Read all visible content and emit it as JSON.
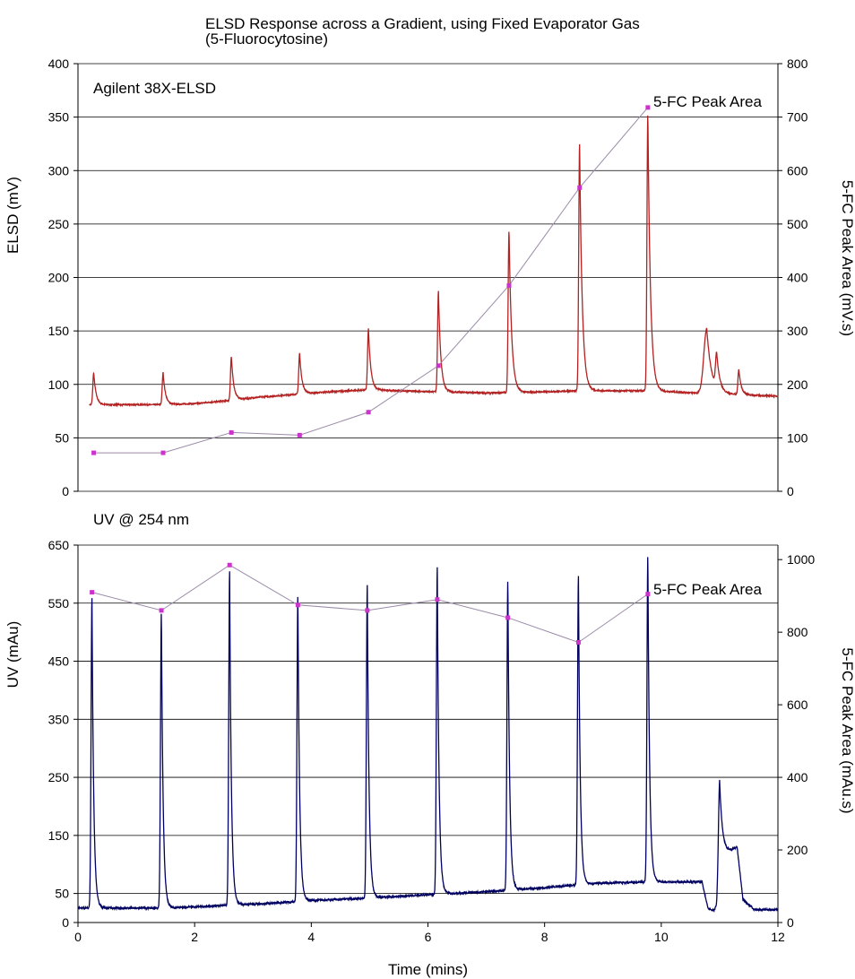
{
  "title_line1": "ELSD Response across a Gradient, using Fixed Evaporator Gas",
  "title_line2": "(5-Fluorocytosine)",
  "chart_data": [
    {
      "type": "line",
      "panel_label": "Agilent 38X-ELSD",
      "ylabel": "ELSD (mV)",
      "y2label": "5-FC Peak Area (mV.s)",
      "xlim": [
        0,
        12
      ],
      "ylim": [
        0,
        400
      ],
      "y2lim": [
        0,
        800
      ],
      "yticks": [
        0,
        50,
        100,
        150,
        200,
        250,
        300,
        350,
        400
      ],
      "y2ticks": [
        0,
        100,
        200,
        300,
        400,
        500,
        600,
        700,
        800
      ],
      "grid": true,
      "colors": {
        "trace": "#b22222",
        "area": "#cc33cc"
      },
      "trace": {
        "baseline": [
          [
            0.2,
            81
          ],
          [
            1.5,
            81
          ],
          [
            2.0,
            82
          ],
          [
            2.6,
            85
          ],
          [
            3.1,
            88
          ],
          [
            3.8,
            91
          ],
          [
            4.3,
            93
          ],
          [
            5.0,
            95
          ],
          [
            5.5,
            94
          ],
          [
            6.2,
            93
          ],
          [
            7.0,
            92
          ],
          [
            8.0,
            93
          ],
          [
            8.6,
            94
          ],
          [
            9.8,
            94
          ],
          [
            10.6,
            92
          ],
          [
            12.0,
            89
          ]
        ],
        "peaks": [
          {
            "t": 0.27,
            "h": 111,
            "w": 0.015,
            "tail": 0.04
          },
          {
            "t": 1.46,
            "h": 111,
            "w": 0.015,
            "tail": 0.04
          },
          {
            "t": 2.63,
            "h": 126,
            "w": 0.015,
            "tail": 0.04
          },
          {
            "t": 3.8,
            "h": 129,
            "w": 0.015,
            "tail": 0.04
          },
          {
            "t": 4.98,
            "h": 152,
            "w": 0.015,
            "tail": 0.04
          },
          {
            "t": 6.18,
            "h": 187,
            "w": 0.015,
            "tail": 0.04
          },
          {
            "t": 7.39,
            "h": 244,
            "w": 0.015,
            "tail": 0.045
          },
          {
            "t": 8.6,
            "h": 325,
            "w": 0.015,
            "tail": 0.045
          },
          {
            "t": 9.77,
            "h": 354,
            "w": 0.015,
            "tail": 0.045
          },
          {
            "t": 10.78,
            "h": 152,
            "w": 0.05,
            "tail": 0.08
          },
          {
            "t": 10.95,
            "h": 123,
            "w": 0.02,
            "tail": 0.05
          },
          {
            "t": 11.33,
            "h": 114,
            "w": 0.015,
            "tail": 0.04
          }
        ]
      },
      "series": [
        {
          "name": "5-FC Peak Area",
          "axis": "right",
          "x": [
            0.27,
            1.46,
            2.63,
            3.8,
            4.98,
            6.18,
            7.39,
            8.6,
            9.77
          ],
          "values": [
            72,
            72,
            110,
            105,
            148,
            235,
            385,
            568,
            718
          ]
        }
      ]
    },
    {
      "type": "line",
      "panel_label": "UV @ 254 nm",
      "xlabel": "Time (mins)",
      "ylabel": "UV (mAu)",
      "y2label": "5-FC Peak Area (mAu.s)",
      "xlim": [
        0,
        12
      ],
      "xticks": [
        0,
        2,
        4,
        6,
        8,
        10,
        12
      ],
      "ylim": [
        0,
        650
      ],
      "y2lim": [
        0,
        1040
      ],
      "yticks": [
        0,
        50,
        150,
        250,
        350,
        450,
        550,
        650
      ],
      "y2ticks": [
        0,
        200,
        400,
        600,
        800,
        1000
      ],
      "grid": true,
      "colors": {
        "trace": "#000060",
        "area": "#cc33cc"
      },
      "trace": {
        "baseline": [
          [
            0,
            25
          ],
          [
            0.3,
            25
          ],
          [
            1.0,
            25
          ],
          [
            1.5,
            25
          ],
          [
            2.0,
            27
          ],
          [
            2.6,
            30
          ],
          [
            3.5,
            34
          ],
          [
            4.0,
            38
          ],
          [
            5.0,
            42
          ],
          [
            6.0,
            48
          ],
          [
            7.0,
            53
          ],
          [
            8.0,
            60
          ],
          [
            8.6,
            65
          ],
          [
            9.0,
            68
          ],
          [
            9.8,
            70
          ],
          [
            10.7,
            70
          ],
          [
            10.8,
            25
          ],
          [
            10.9,
            20
          ],
          [
            10.95,
            30
          ],
          [
            11.0,
            110
          ],
          [
            11.3,
            130
          ],
          [
            11.4,
            40
          ],
          [
            11.6,
            22
          ],
          [
            12.0,
            22
          ]
        ],
        "peaks": [
          {
            "t": 0.24,
            "h": 560,
            "w": 0.015,
            "tail": 0.03
          },
          {
            "t": 1.43,
            "h": 535,
            "w": 0.015,
            "tail": 0.03
          },
          {
            "t": 2.6,
            "h": 605,
            "w": 0.015,
            "tail": 0.03
          },
          {
            "t": 3.77,
            "h": 565,
            "w": 0.015,
            "tail": 0.03
          },
          {
            "t": 4.96,
            "h": 580,
            "w": 0.015,
            "tail": 0.03
          },
          {
            "t": 6.16,
            "h": 612,
            "w": 0.015,
            "tail": 0.03
          },
          {
            "t": 7.37,
            "h": 592,
            "w": 0.015,
            "tail": 0.03
          },
          {
            "t": 8.58,
            "h": 598,
            "w": 0.015,
            "tail": 0.03
          },
          {
            "t": 9.77,
            "h": 635,
            "w": 0.015,
            "tail": 0.03
          },
          {
            "t": 11.0,
            "h": 245,
            "w": 0.02,
            "tail": 0.05
          }
        ]
      },
      "series": [
        {
          "name": "5-FC Peak Area",
          "axis": "right",
          "x": [
            0.24,
            1.43,
            2.6,
            3.77,
            4.96,
            6.16,
            7.37,
            8.58,
            9.77
          ],
          "values": [
            910,
            860,
            985,
            875,
            860,
            890,
            840,
            772,
            905
          ]
        }
      ]
    }
  ]
}
